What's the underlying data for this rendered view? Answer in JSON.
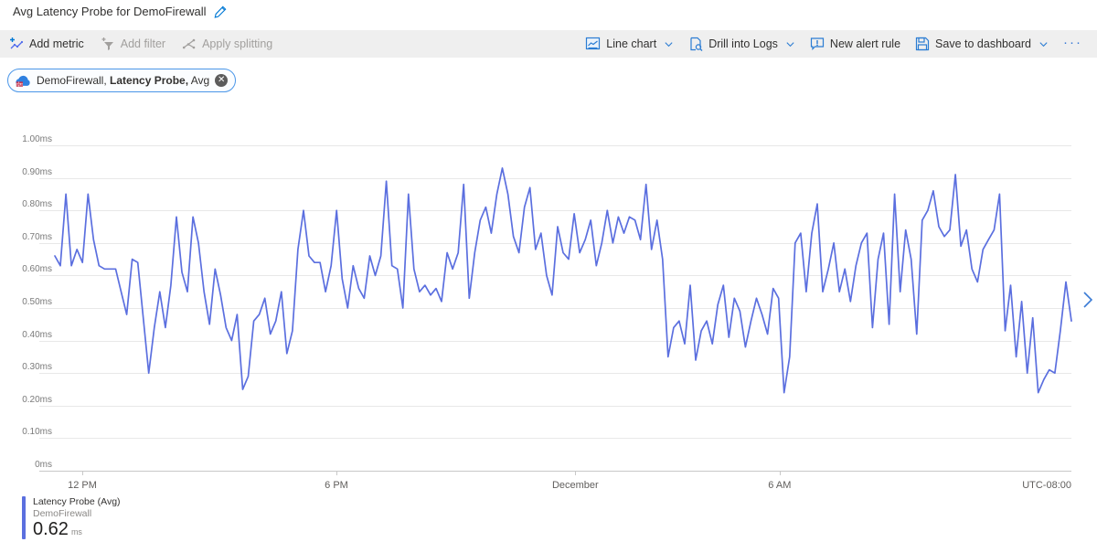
{
  "page": {
    "title": "Avg Latency Probe for DemoFirewall"
  },
  "toolbar": {
    "left": [
      {
        "label": "Add metric",
        "enabled": true
      },
      {
        "label": "Add filter",
        "enabled": false
      },
      {
        "label": "Apply splitting",
        "enabled": false
      }
    ],
    "right": [
      {
        "label": "Line chart",
        "has_dropdown": true
      },
      {
        "label": "Drill into Logs",
        "has_dropdown": true
      },
      {
        "label": "New alert rule",
        "has_dropdown": false
      },
      {
        "label": "Save to dashboard",
        "has_dropdown": true
      }
    ],
    "more_label": "···"
  },
  "metric_pill": {
    "resource": "DemoFirewall,",
    "metric": "Latency Probe,",
    "aggregation": "Avg",
    "close_glyph": "✕"
  },
  "chart_data": {
    "type": "line",
    "title": "Avg Latency Probe for DemoFirewall",
    "ylabel": "ms",
    "ylim": [
      0,
      1.0
    ],
    "grid": true,
    "legend_position": "bottom-left",
    "line_color": "#5b6fdf",
    "y_ticks": [
      "1.00ms",
      "0.90ms",
      "0.80ms",
      "0.70ms",
      "0.60ms",
      "0.50ms",
      "0.40ms",
      "0.30ms",
      "0.20ms",
      "0.10ms",
      "0ms"
    ],
    "x_ticks": [
      {
        "label": "12 PM",
        "pos": 0.027,
        "tick": true,
        "align": "center"
      },
      {
        "label": "6 PM",
        "pos": 0.277,
        "tick": true,
        "align": "center"
      },
      {
        "label": "December",
        "pos": 0.512,
        "tick": true,
        "align": "center"
      },
      {
        "label": "6 AM",
        "pos": 0.713,
        "tick": true,
        "align": "center"
      },
      {
        "label": "UTC-08:00",
        "pos": 1.0,
        "tick": false,
        "align": "right"
      }
    ],
    "series": [
      {
        "name": "Latency Probe (Avg)",
        "resource": "DemoFirewall",
        "aggregate_value": 0.62,
        "unit": "ms",
        "values": [
          0.66,
          0.63,
          0.85,
          0.63,
          0.68,
          0.64,
          0.85,
          0.71,
          0.63,
          0.62,
          0.62,
          0.62,
          0.55,
          0.48,
          0.65,
          0.64,
          0.47,
          0.3,
          0.44,
          0.55,
          0.44,
          0.57,
          0.78,
          0.61,
          0.55,
          0.78,
          0.7,
          0.55,
          0.45,
          0.62,
          0.54,
          0.44,
          0.4,
          0.48,
          0.25,
          0.29,
          0.46,
          0.48,
          0.53,
          0.42,
          0.46,
          0.55,
          0.36,
          0.43,
          0.68,
          0.8,
          0.66,
          0.64,
          0.64,
          0.55,
          0.63,
          0.8,
          0.59,
          0.5,
          0.63,
          0.56,
          0.53,
          0.66,
          0.6,
          0.66,
          0.89,
          0.63,
          0.62,
          0.5,
          0.85,
          0.62,
          0.55,
          0.57,
          0.54,
          0.56,
          0.52,
          0.67,
          0.62,
          0.67,
          0.88,
          0.53,
          0.67,
          0.77,
          0.81,
          0.73,
          0.85,
          0.93,
          0.85,
          0.72,
          0.67,
          0.81,
          0.87,
          0.68,
          0.73,
          0.6,
          0.54,
          0.75,
          0.67,
          0.65,
          0.79,
          0.67,
          0.71,
          0.77,
          0.63,
          0.7,
          0.8,
          0.7,
          0.78,
          0.73,
          0.78,
          0.77,
          0.71,
          0.88,
          0.68,
          0.77,
          0.65,
          0.35,
          0.44,
          0.46,
          0.39,
          0.57,
          0.34,
          0.43,
          0.46,
          0.39,
          0.51,
          0.57,
          0.41,
          0.53,
          0.49,
          0.38,
          0.46,
          0.53,
          0.48,
          0.42,
          0.56,
          0.53,
          0.24,
          0.35,
          0.7,
          0.73,
          0.55,
          0.73,
          0.82,
          0.55,
          0.62,
          0.7,
          0.55,
          0.62,
          0.52,
          0.63,
          0.7,
          0.73,
          0.44,
          0.65,
          0.73,
          0.45,
          0.85,
          0.55,
          0.74,
          0.65,
          0.42,
          0.77,
          0.8,
          0.86,
          0.75,
          0.72,
          0.74,
          0.91,
          0.69,
          0.74,
          0.62,
          0.58,
          0.68,
          0.71,
          0.74,
          0.85,
          0.43,
          0.57,
          0.35,
          0.52,
          0.3,
          0.47,
          0.24,
          0.28,
          0.31,
          0.3,
          0.43,
          0.58,
          0.46
        ]
      }
    ]
  },
  "legend": {
    "metric": "Latency Probe (Avg)",
    "resource": "DemoFirewall",
    "value": "0.62",
    "unit": "ms"
  },
  "colors": {
    "accent_blue": "#2b7cd3",
    "line_blue": "#5b6fdf",
    "toolbar_bg": "#efefef",
    "disabled_gray": "#a19f9d"
  }
}
